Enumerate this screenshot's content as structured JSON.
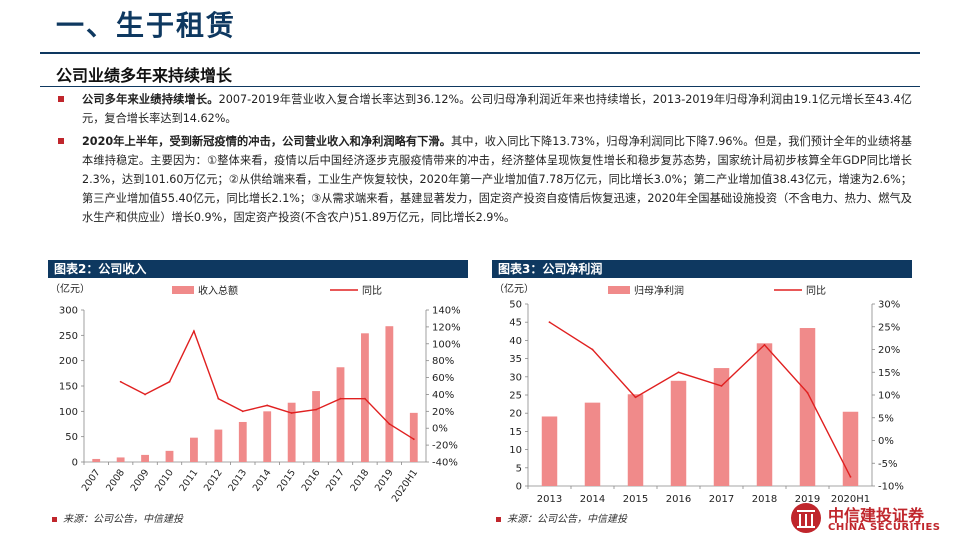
{
  "page": {
    "title": "一、生于租赁",
    "subtitle": "公司业绩多年来持续增长",
    "bullets": [
      {
        "lead": "公司多年来业绩持续增长。",
        "text": "2007-2019年营业收入复合增长率达到36.12%。公司归母净利润近年来也持续增长，2013-2019年归母净利润由19.1亿元增长至43.4亿元，复合增长率达到14.62%。"
      },
      {
        "lead": "2020年上半年，受到新冠疫情的冲击，公司营业收入和净利润略有下滑。",
        "text": "其中，收入同比下降13.73%，归母净利润同比下降7.96%。但是，我们预计全年的业绩将基本维持稳定。主要因为：①整体来看，疫情以后中国经济逐步克服疫情带来的冲击，经济整体呈现恢复性增长和稳步复苏态势，国家统计局初步核算全年GDP同比增长2.3%，达到101.60万亿元；②从供给端来看，工业生产恢复较快，2020年第一产业增加值7.78万亿元，同比增长3.0%；第二产业增加值38.43亿元，增速为2.6%；第三产业增加值55.40亿元，同比增长2.1%；③从需求端来看，基建显著发力，固定资产投资自疫情后恢复迅速，2020年全国基础设施投资（不含电力、热力、燃气及水生产和供应业）增长0.9%，固定资产投资(不含农户)51.89万亿元，同比增长2.9%。"
      }
    ],
    "source": "来源：公司公告，中信建投",
    "logo_cn": "中信建投证券",
    "logo_en": "CHINA SECURITIES"
  },
  "chart_data": [
    {
      "type": "bar",
      "panel_label": "图表2：公司收入",
      "unit_label": "（亿元）",
      "categories": [
        "2007",
        "2008",
        "2009",
        "2010",
        "2011",
        "2012",
        "2013",
        "2014",
        "2015",
        "2016",
        "2017",
        "2018",
        "2019",
        "2020H1"
      ],
      "series": [
        {
          "name": "收入总额",
          "kind": "bar",
          "axis": "left",
          "color": "#f08a8a",
          "values": [
            6,
            9,
            14,
            22,
            48,
            64,
            79,
            100,
            117,
            140,
            187,
            254,
            268,
            97
          ]
        },
        {
          "name": "同比",
          "kind": "line",
          "axis": "right",
          "color": "#e02020",
          "values": [
            null,
            55,
            40,
            55,
            115,
            35,
            20,
            27,
            18,
            22,
            35,
            35,
            5,
            -13
          ]
        }
      ],
      "y_left": {
        "min": 0,
        "max": 300,
        "ticks": [
          "0",
          "50",
          "100",
          "150",
          "200",
          "250",
          "300"
        ]
      },
      "y_right": {
        "min": -40,
        "max": 140,
        "ticks": [
          "-40%",
          "-20%",
          "0%",
          "20%",
          "40%",
          "60%",
          "80%",
          "100%",
          "120%",
          "140%"
        ]
      },
      "grid": false,
      "legend": "top"
    },
    {
      "type": "bar",
      "panel_label": "图表3：公司净利润",
      "unit_label": "（亿元）",
      "categories": [
        "2013",
        "2014",
        "2015",
        "2016",
        "2017",
        "2018",
        "2019",
        "2020H1"
      ],
      "series": [
        {
          "name": "归母净利润",
          "kind": "bar",
          "axis": "left",
          "color": "#f08a8a",
          "values": [
            19.1,
            22.9,
            25.2,
            28.9,
            32.4,
            39.2,
            43.4,
            20.4
          ]
        },
        {
          "name": "同比",
          "kind": "line",
          "axis": "right",
          "color": "#e02020",
          "values": [
            26,
            20,
            9.5,
            15,
            12,
            21,
            10.5,
            -8
          ]
        }
      ],
      "y_left": {
        "min": 0,
        "max": 50,
        "ticks": [
          "0",
          "5",
          "10",
          "15",
          "20",
          "25",
          "30",
          "35",
          "40",
          "45",
          "50"
        ]
      },
      "y_right": {
        "min": -10,
        "max": 30,
        "ticks": [
          "-10%",
          "-5%",
          "0%",
          "5%",
          "10%",
          "15%",
          "20%",
          "25%",
          "30%"
        ]
      },
      "grid": false,
      "legend": "top"
    }
  ]
}
